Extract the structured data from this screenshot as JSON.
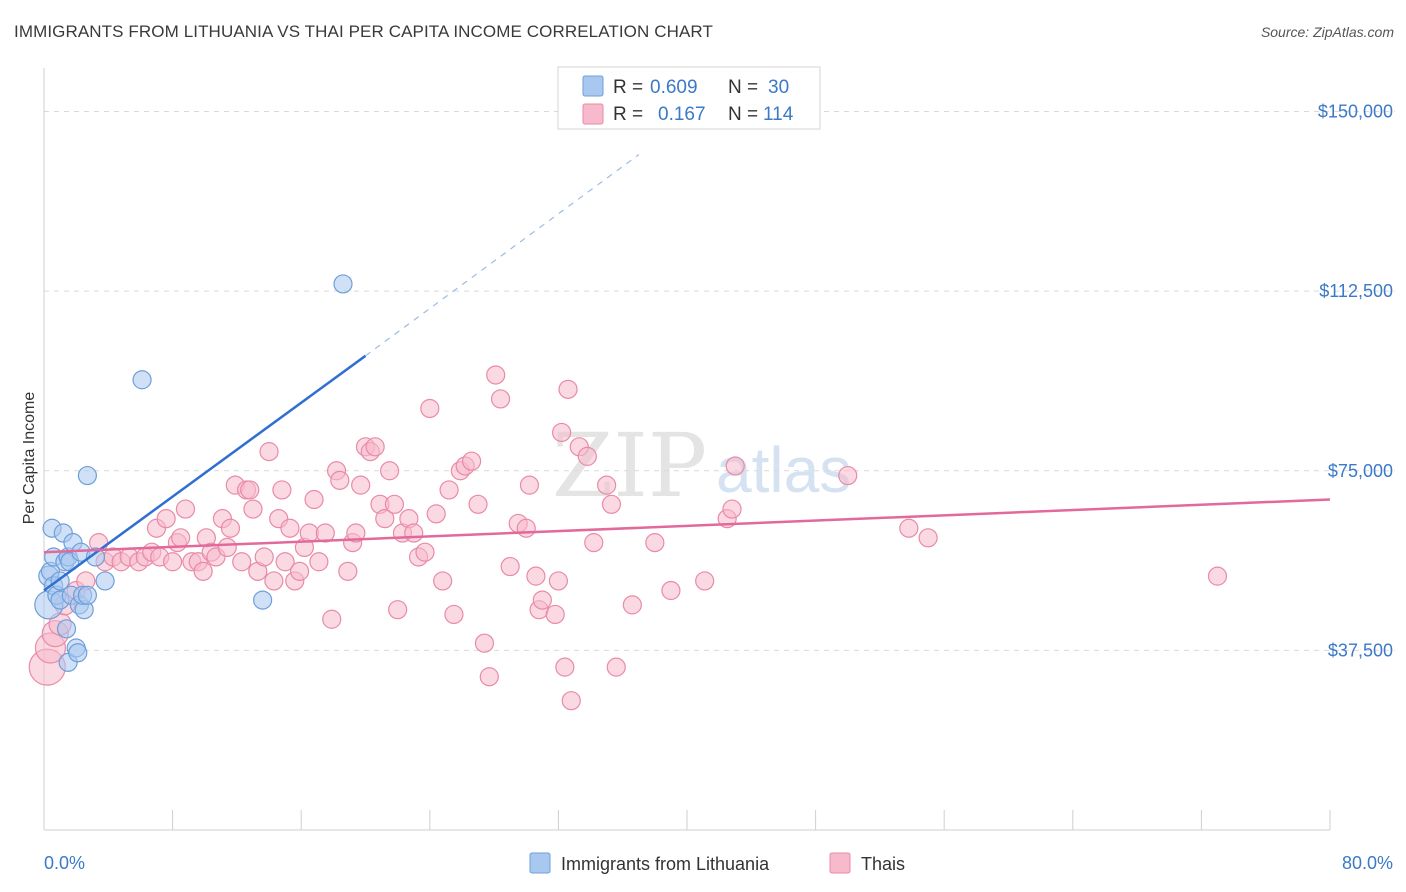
{
  "title": "IMMIGRANTS FROM LITHUANIA VS THAI PER CAPITA INCOME CORRELATION CHART",
  "source": "Source: ZipAtlas.com",
  "watermark": {
    "zip": "ZIP",
    "atlas": "atlas"
  },
  "legend_box": {
    "rows": [
      {
        "r_label": "R =",
        "r_value": "0.609",
        "n_label": "N =",
        "n_value": "30",
        "color": "#a9c8f0",
        "stroke": "#6e9fd9"
      },
      {
        "r_label": "R =",
        "r_value": "0.167",
        "n_label": "N =",
        "n_value": "114",
        "color": "#f7b9cc",
        "stroke": "#e98aa8"
      }
    ]
  },
  "chart_data": {
    "type": "scatter",
    "title": "IMMIGRANTS FROM LITHUANIA VS THAI PER CAPITA INCOME CORRELATION CHART",
    "xlabel": "",
    "ylabel": "Per Capita Income",
    "xlim": [
      0,
      80
    ],
    "ylim": [
      0,
      157000
    ],
    "x_tick_labels": [
      "0.0%",
      "80.0%"
    ],
    "y_ticks": [
      37500,
      75000,
      112500,
      150000
    ],
    "y_tick_labels": [
      "$37,500",
      "$75,000",
      "$112,500",
      "$150,000"
    ],
    "grid": "horizontal dashed",
    "legend_position": "bottom",
    "series": [
      {
        "name": "Immigrants from Lithuania",
        "color": "#a9c8f0",
        "stroke": "#6e9fd9",
        "line_color": "#2f6fd1",
        "trend": {
          "x0": 0,
          "y0": 50000,
          "x1": 20,
          "y1": 99000,
          "dash_to_x": 37,
          "dash_to_y": 141000
        },
        "points": [
          [
            0.3,
            47000,
            14
          ],
          [
            0.3,
            53000,
            10
          ],
          [
            0.4,
            54000,
            9
          ],
          [
            0.5,
            63000,
            9
          ],
          [
            0.6,
            57000,
            9
          ],
          [
            0.6,
            51000,
            9
          ],
          [
            0.8,
            49000,
            9
          ],
          [
            1.0,
            48000,
            9
          ],
          [
            1.0,
            52000,
            9
          ],
          [
            1.2,
            62000,
            9
          ],
          [
            1.3,
            56000,
            9
          ],
          [
            1.4,
            42000,
            9
          ],
          [
            1.5,
            35000,
            9
          ],
          [
            1.5,
            57000,
            9
          ],
          [
            1.6,
            56000,
            9
          ],
          [
            1.7,
            49000,
            9
          ],
          [
            1.8,
            60000,
            9
          ],
          [
            2.0,
            38000,
            9
          ],
          [
            2.1,
            37000,
            9
          ],
          [
            2.2,
            47000,
            9
          ],
          [
            2.3,
            58000,
            9
          ],
          [
            2.5,
            46000,
            9
          ],
          [
            2.4,
            49000,
            9
          ],
          [
            2.7,
            49000,
            9
          ],
          [
            2.7,
            74000,
            9
          ],
          [
            3.2,
            57000,
            9
          ],
          [
            3.8,
            52000,
            9
          ],
          [
            6.1,
            94000,
            9
          ],
          [
            13.6,
            48000,
            9
          ],
          [
            18.6,
            114000,
            9
          ]
        ]
      },
      {
        "name": "Thais",
        "color": "#f7b9cc",
        "stroke": "#e98aa8",
        "line_color": "#e3699a",
        "trend": {
          "x0": 0,
          "y0": 58000,
          "x1": 80,
          "y1": 69000
        },
        "points": [
          [
            0.2,
            34000,
            18
          ],
          [
            0.4,
            38000,
            15
          ],
          [
            0.7,
            41000,
            13
          ],
          [
            1.0,
            43000,
            11
          ],
          [
            1.3,
            47000,
            10
          ],
          [
            2.0,
            50000,
            9
          ],
          [
            2.6,
            52000,
            9
          ],
          [
            3.4,
            60000,
            9
          ],
          [
            3.8,
            56000,
            9
          ],
          [
            4.3,
            57000,
            9
          ],
          [
            4.8,
            56000,
            9
          ],
          [
            5.3,
            57000,
            9
          ],
          [
            5.9,
            56000,
            9
          ],
          [
            6.3,
            57000,
            9
          ],
          [
            6.7,
            58000,
            9
          ],
          [
            7.0,
            63000,
            9
          ],
          [
            7.2,
            57000,
            9
          ],
          [
            7.6,
            65000,
            9
          ],
          [
            8.0,
            56000,
            9
          ],
          [
            8.3,
            60000,
            9
          ],
          [
            8.5,
            61000,
            9
          ],
          [
            8.8,
            67000,
            9
          ],
          [
            9.2,
            56000,
            9
          ],
          [
            9.6,
            56000,
            9
          ],
          [
            9.9,
            54000,
            9
          ],
          [
            10.1,
            61000,
            9
          ],
          [
            10.4,
            58000,
            9
          ],
          [
            10.7,
            57000,
            9
          ],
          [
            11.1,
            65000,
            9
          ],
          [
            11.4,
            59000,
            9
          ],
          [
            11.6,
            63000,
            9
          ],
          [
            11.9,
            72000,
            9
          ],
          [
            12.3,
            56000,
            9
          ],
          [
            12.6,
            71000,
            9
          ],
          [
            12.8,
            71000,
            9
          ],
          [
            13.0,
            67000,
            9
          ],
          [
            13.3,
            54000,
            9
          ],
          [
            13.7,
            57000,
            9
          ],
          [
            14.0,
            79000,
            9
          ],
          [
            14.3,
            52000,
            9
          ],
          [
            14.8,
            71000,
            9
          ],
          [
            14.6,
            65000,
            9
          ],
          [
            15.0,
            56000,
            9
          ],
          [
            15.3,
            63000,
            9
          ],
          [
            15.6,
            52000,
            9
          ],
          [
            15.9,
            54000,
            9
          ],
          [
            16.2,
            59000,
            9
          ],
          [
            16.5,
            62000,
            9
          ],
          [
            16.8,
            69000,
            9
          ],
          [
            17.1,
            56000,
            9
          ],
          [
            17.5,
            62000,
            9
          ],
          [
            17.9,
            44000,
            9
          ],
          [
            18.2,
            75000,
            9
          ],
          [
            18.4,
            73000,
            9
          ],
          [
            18.9,
            54000,
            9
          ],
          [
            19.2,
            60000,
            9
          ],
          [
            19.4,
            62000,
            9
          ],
          [
            19.7,
            72000,
            9
          ],
          [
            20.0,
            80000,
            9
          ],
          [
            20.3,
            79000,
            9
          ],
          [
            20.6,
            80000,
            9
          ],
          [
            20.9,
            68000,
            9
          ],
          [
            21.2,
            65000,
            9
          ],
          [
            21.5,
            75000,
            9
          ],
          [
            21.8,
            68000,
            9
          ],
          [
            22.0,
            46000,
            9
          ],
          [
            22.3,
            62000,
            9
          ],
          [
            22.7,
            65000,
            9
          ],
          [
            23.0,
            62000,
            9
          ],
          [
            23.3,
            57000,
            9
          ],
          [
            23.7,
            58000,
            9
          ],
          [
            24.0,
            88000,
            9
          ],
          [
            24.4,
            66000,
            9
          ],
          [
            24.8,
            52000,
            9
          ],
          [
            25.2,
            71000,
            9
          ],
          [
            25.5,
            45000,
            9
          ],
          [
            25.9,
            75000,
            9
          ],
          [
            26.2,
            76000,
            9
          ],
          [
            26.6,
            77000,
            9
          ],
          [
            27.0,
            68000,
            9
          ],
          [
            27.4,
            39000,
            9
          ],
          [
            27.7,
            32000,
            9
          ],
          [
            28.1,
            95000,
            9
          ],
          [
            28.4,
            90000,
            9
          ],
          [
            29.0,
            55000,
            9
          ],
          [
            29.5,
            64000,
            9
          ],
          [
            30.0,
            63000,
            9
          ],
          [
            30.2,
            72000,
            9
          ],
          [
            30.6,
            53000,
            9
          ],
          [
            30.8,
            46000,
            9
          ],
          [
            31.0,
            48000,
            9
          ],
          [
            31.8,
            45000,
            9
          ],
          [
            32.0,
            52000,
            9
          ],
          [
            32.2,
            83000,
            9
          ],
          [
            32.4,
            34000,
            9
          ],
          [
            32.6,
            92000,
            9
          ],
          [
            32.8,
            27000,
            9
          ],
          [
            33.3,
            80000,
            9
          ],
          [
            33.8,
            78000,
            9
          ],
          [
            34.2,
            60000,
            9
          ],
          [
            35.0,
            72000,
            9
          ],
          [
            35.3,
            68000,
            9
          ],
          [
            35.6,
            34000,
            9
          ],
          [
            36.6,
            47000,
            9
          ],
          [
            38.0,
            60000,
            9
          ],
          [
            39.0,
            50000,
            9
          ],
          [
            41.1,
            52000,
            9
          ],
          [
            42.5,
            65000,
            9
          ],
          [
            42.8,
            67000,
            9
          ],
          [
            43.0,
            76000,
            9
          ],
          [
            50.0,
            74000,
            9
          ],
          [
            53.8,
            63000,
            9
          ],
          [
            55.0,
            61000,
            9
          ],
          [
            73.0,
            53000,
            9
          ]
        ]
      }
    ]
  }
}
